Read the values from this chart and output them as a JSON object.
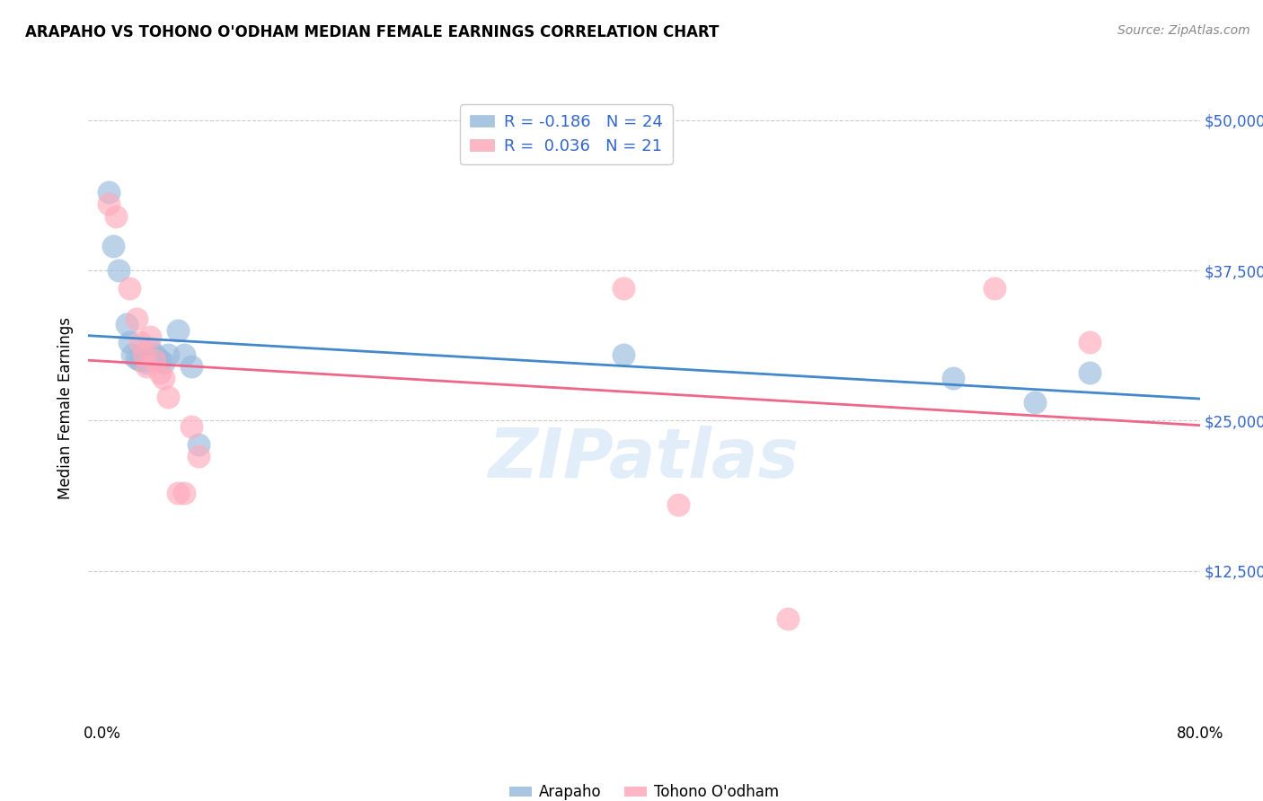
{
  "title": "ARAPAHO VS TOHONO O'ODHAM MEDIAN FEMALE EARNINGS CORRELATION CHART",
  "source": "Source: ZipAtlas.com",
  "ylabel": "Median Female Earnings",
  "yticks": [
    12500,
    25000,
    37500,
    50000
  ],
  "ytick_labels": [
    "$12,500",
    "$25,000",
    "$37,500",
    "$50,000"
  ],
  "watermark": "ZIPatlas",
  "legend_label1": "Arapaho",
  "legend_label2": "Tohono O'odham",
  "blue_color": "#99BBDD",
  "pink_color": "#FFAABB",
  "blue_line_color": "#4488CC",
  "pink_line_color": "#EE6688",
  "blue_label_color": "#3366CC",
  "arapaho_x": [
    0.005,
    0.008,
    0.012,
    0.018,
    0.02,
    0.022,
    0.025,
    0.028,
    0.03,
    0.032,
    0.035,
    0.038,
    0.04,
    0.042,
    0.045,
    0.048,
    0.055,
    0.06,
    0.065,
    0.07,
    0.38,
    0.62,
    0.68,
    0.72
  ],
  "arapaho_y": [
    44000,
    39500,
    37500,
    33000,
    31500,
    30500,
    30200,
    30000,
    30000,
    29800,
    31000,
    30500,
    30200,
    30000,
    29800,
    30500,
    32500,
    30500,
    29500,
    23000,
    30500,
    28500,
    26500,
    29000
  ],
  "tohono_x": [
    0.005,
    0.01,
    0.02,
    0.025,
    0.028,
    0.03,
    0.032,
    0.035,
    0.038,
    0.042,
    0.045,
    0.048,
    0.055,
    0.06,
    0.065,
    0.07,
    0.38,
    0.42,
    0.5,
    0.65,
    0.72
  ],
  "tohono_y": [
    43000,
    42000,
    36000,
    33500,
    31500,
    30500,
    29500,
    32000,
    30000,
    29000,
    28500,
    27000,
    19000,
    19000,
    24500,
    22000,
    36000,
    18000,
    8500,
    36000,
    31500
  ],
  "xmin": -0.01,
  "xmax": 0.8,
  "ymin": 0,
  "ymax": 52000,
  "background_color": "#FFFFFF",
  "grid_color": "#CCCCCC",
  "grid_linestyle": "--"
}
